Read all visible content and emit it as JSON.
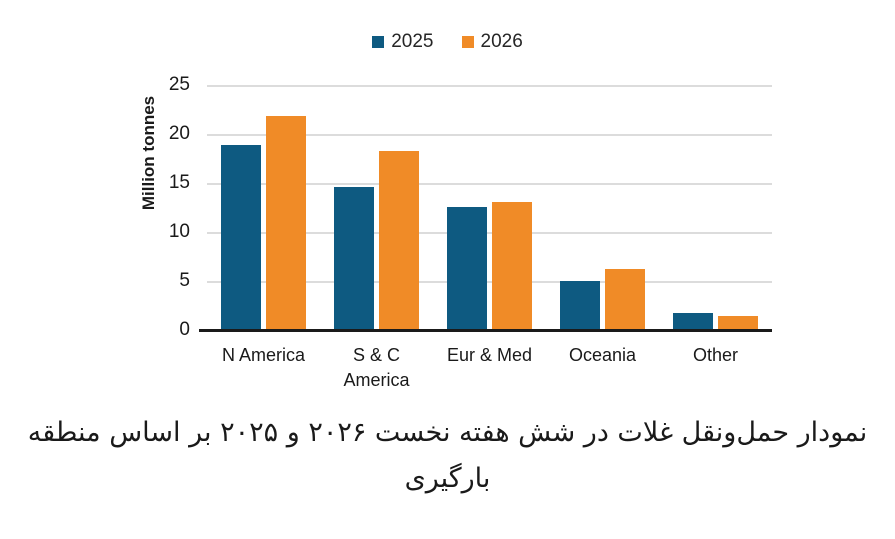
{
  "chart_data": {
    "type": "bar",
    "categories": [
      "N America",
      "S & C America",
      "Eur & Med",
      "Oceania",
      "Other"
    ],
    "category_tick_labels": [
      "N America",
      "S & C\nAmerica",
      "Eur & Med",
      "Oceania",
      "Other"
    ],
    "series": [
      {
        "name": "2025",
        "color": "#0E5A81",
        "values": [
          19.0,
          14.7,
          12.7,
          5.1,
          1.8
        ]
      },
      {
        "name": "2026",
        "color": "#F08B27",
        "values": [
          21.9,
          18.4,
          13.2,
          6.3,
          1.5
        ]
      }
    ],
    "xlabel": "",
    "ylabel": "Million tonnes",
    "yticks": [
      0,
      5,
      10,
      15,
      20,
      25
    ],
    "ylim": [
      0,
      25
    ],
    "grid": true,
    "gridline_color": "#DCDCDC",
    "axis_line_color": "#1A1A1A",
    "legend_position": "top"
  },
  "caption": "نمودار حمل‌ونقل غلات در شش هفته نخست ۲۰۲۶ و ۲۰۲۵ بر اساس منطقه بارگیری"
}
